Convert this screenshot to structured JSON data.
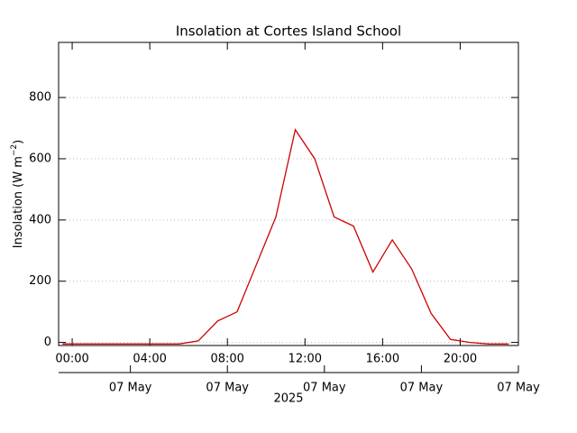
{
  "chart_data": {
    "type": "line",
    "title": "Insolation at Cortes Island School",
    "ylabel": [
      "Insolation (W m",
      "−2",
      ")"
    ],
    "x": [
      -0.5,
      0.5,
      1.5,
      2.5,
      3.5,
      4.5,
      5.5,
      6.5,
      7.5,
      8.5,
      9.5,
      10.5,
      11.5,
      12.5,
      13.5,
      14.5,
      15.5,
      16.5,
      17.5,
      18.5,
      19.5,
      20.5,
      21.5,
      22.5
    ],
    "series": [
      {
        "name": "Insolation",
        "color": "#cc0000",
        "values": [
          -5,
          -5,
          -5,
          -5,
          -5,
          -5,
          -5,
          5,
          70,
          100,
          255,
          410,
          695,
          600,
          410,
          380,
          230,
          335,
          240,
          95,
          10,
          0,
          -5,
          -5
        ]
      }
    ],
    "xlim": [
      -0.7,
      23.0
    ],
    "xticks": [
      {
        "value": 0,
        "label": "00:00"
      },
      {
        "value": 4,
        "label": "04:00"
      },
      {
        "value": 8,
        "label": "08:00"
      },
      {
        "value": 12,
        "label": "12:00"
      },
      {
        "value": 16,
        "label": "16:00"
      },
      {
        "value": 20,
        "label": "20:00"
      }
    ],
    "x2ticks": [
      {
        "value": 3,
        "label": "07 May"
      },
      {
        "value": 8,
        "label": "07 May"
      },
      {
        "value": 13,
        "label": "07 May"
      },
      {
        "value": 18,
        "label": "07 May"
      },
      {
        "value": 23,
        "label": "07 May"
      }
    ],
    "x2label": "2025",
    "ylim": [
      -10,
      980
    ],
    "yticks": [
      0,
      200,
      400,
      600,
      800
    ],
    "grid": true
  }
}
